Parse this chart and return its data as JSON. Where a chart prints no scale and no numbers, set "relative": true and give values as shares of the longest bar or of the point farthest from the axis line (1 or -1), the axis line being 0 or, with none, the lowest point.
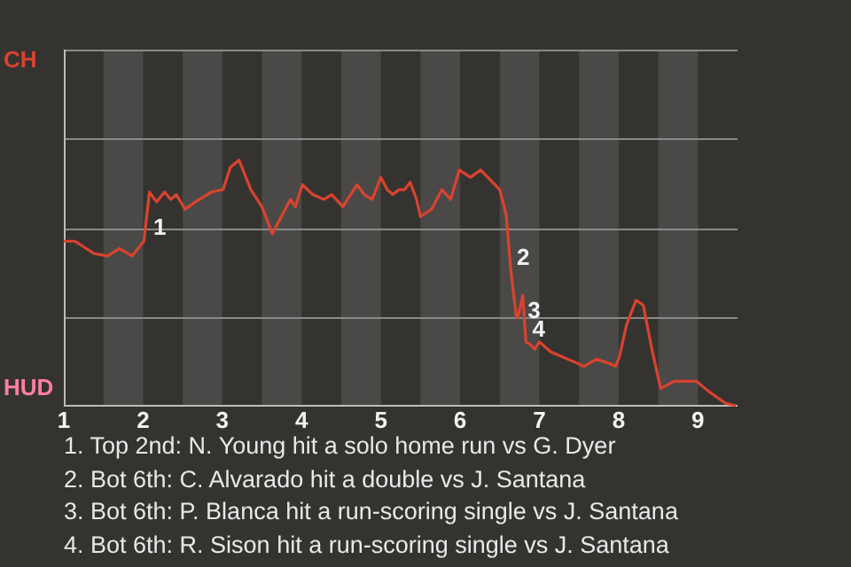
{
  "chart_data": {
    "type": "line",
    "relative": true,
    "x": [
      1.0,
      1.14,
      1.38,
      1.55,
      1.7,
      1.86,
      2.01,
      2.08,
      2.17,
      2.27,
      2.35,
      2.42,
      2.53,
      2.66,
      2.86,
      3.01,
      3.1,
      3.21,
      3.36,
      3.5,
      3.63,
      3.76,
      3.86,
      3.92,
      4.01,
      4.14,
      4.28,
      4.38,
      4.52,
      4.7,
      4.79,
      4.89,
      5.0,
      5.08,
      5.15,
      5.23,
      5.3,
      5.37,
      5.45,
      5.5,
      5.64,
      5.77,
      5.88,
      5.99,
      6.13,
      6.26,
      6.5,
      6.58,
      6.64,
      6.71,
      6.73,
      6.79,
      6.83,
      6.88,
      6.94,
      7.0,
      7.14,
      7.5,
      7.56,
      7.72,
      7.9,
      7.96,
      8.01,
      8.1,
      8.22,
      8.31,
      8.42,
      8.53,
      8.7,
      8.98,
      9.13,
      9.35,
      9.48
    ],
    "series": [
      {
        "color": "#d9432f",
        "values": [
          0.67,
          0.67,
          0.62,
          0.61,
          0.64,
          0.61,
          0.67,
          0.87,
          0.83,
          0.87,
          0.84,
          0.86,
          0.8,
          0.83,
          0.87,
          0.88,
          0.97,
          1,
          0.88,
          0.81,
          0.7,
          0.78,
          0.84,
          0.81,
          0.9,
          0.86,
          0.84,
          0.86,
          0.81,
          0.9,
          0.86,
          0.84,
          0.93,
          0.88,
          0.86,
          0.88,
          0.88,
          0.91,
          0.84,
          0.77,
          0.8,
          0.88,
          0.84,
          0.96,
          0.93,
          0.96,
          0.88,
          0.78,
          0.55,
          0.36,
          0.36,
          0.45,
          0.26,
          0.25,
          0.23,
          0.26,
          0.22,
          0.17,
          0.16,
          0.19,
          0.17,
          0.16,
          0.2,
          0.33,
          0.43,
          0.41,
          0.23,
          0.07,
          0.1,
          0.1,
          0.06,
          0.01,
          0
        ],
        "name": null
      }
    ],
    "ref_lines": [
      {
        "axis": "y",
        "value": 0.36,
        "color": "#8a8a88"
      },
      {
        "axis": "y",
        "value": 0.72,
        "color": "#8a8a88"
      },
      {
        "axis": "y",
        "value": 1.09,
        "color": "#8a8a88"
      },
      {
        "axis": "y",
        "value": 1.45,
        "color": "#8a8a88"
      }
    ],
    "xlim": [
      1,
      9.5
    ],
    "xticks": [
      1,
      2,
      3,
      4,
      5,
      6,
      7,
      8,
      9
    ],
    "legend": false,
    "marker": "none",
    "line_style": "solid",
    "bands": [
      {
        "axis": "x",
        "from": 1.5,
        "to": 2,
        "color": "#4a4947"
      },
      {
        "axis": "x",
        "from": 2.5,
        "to": 3,
        "color": "#4a4947"
      },
      {
        "axis": "x",
        "from": 3.5,
        "to": 4,
        "color": "#4a4947"
      },
      {
        "axis": "x",
        "from": 4.5,
        "to": 5,
        "color": "#4a4947"
      },
      {
        "axis": "x",
        "from": 5.5,
        "to": 6,
        "color": "#4a4947"
      },
      {
        "axis": "x",
        "from": 6.5,
        "to": 7,
        "color": "#4a4947"
      },
      {
        "axis": "x",
        "from": 7.5,
        "to": 8,
        "color": "#4a4947"
      },
      {
        "axis": "x",
        "from": 8.5,
        "to": 9,
        "color": "#4a4947"
      }
    ],
    "annotations": [
      "CH",
      "HUD",
      {
        "text": "1",
        "x": 2.01,
        "y": 0.67
      },
      {
        "text": "2",
        "x": 6.64,
        "y": 0.55
      },
      {
        "text": "3",
        "x": 6.71,
        "y": 0.36
      },
      {
        "text": "4",
        "x": 6.88,
        "y": 0.25
      },
      "1. Top 2nd: N. Young hit a solo home run vs G. Dyer",
      "2. Bot 6th: C. Alvarado hit a double vs J. Santana",
      "3. Bot 6th: P. Blanca hit a run-scoring single vs J. Santana",
      "4. Bot 6th: R. Sison hit a run-scoring single vs J. Santana"
    ]
  }
}
